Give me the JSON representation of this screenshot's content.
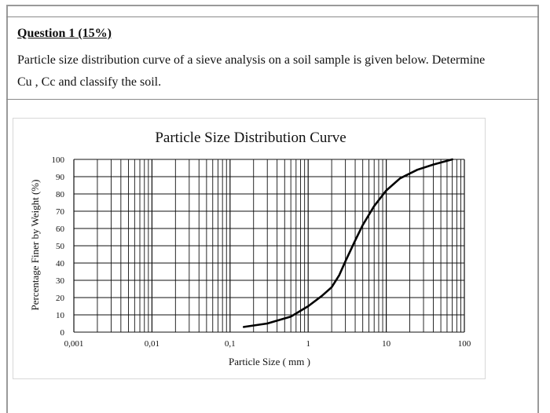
{
  "question": {
    "title": "Question 1 (15%)",
    "text_line1": "Particle size distribution curve of a sieve analysis on a soil sample is given below. Determine",
    "text_line2": "Cu , Cc and classify the soil."
  },
  "chart_data": {
    "type": "line",
    "title": "Particle Size Distribution Curve",
    "xlabel": "Particle Size ( mm )",
    "ylabel": "Percentage Finer by Weight (%)",
    "x_scale": "log",
    "xlim": [
      0.001,
      100
    ],
    "ylim": [
      0,
      100
    ],
    "x_ticks": [
      "0,001",
      "0,01",
      "0,1",
      "1",
      "10",
      "100"
    ],
    "y_ticks": [
      "0",
      "10",
      "20",
      "30",
      "40",
      "50",
      "60",
      "70",
      "80",
      "90",
      "100"
    ],
    "grid": true,
    "series": [
      {
        "x": [
          0.15,
          0.3,
          0.6,
          1.0,
          1.5,
          2.0,
          2.5,
          3.0,
          4.0,
          5.0,
          7.0,
          10.0,
          15.0,
          25.0,
          40.0,
          70.0
        ],
        "y": [
          3,
          5,
          9,
          15,
          21,
          26,
          33,
          41,
          53,
          62,
          73,
          82,
          89,
          94,
          97,
          100
        ]
      }
    ]
  }
}
